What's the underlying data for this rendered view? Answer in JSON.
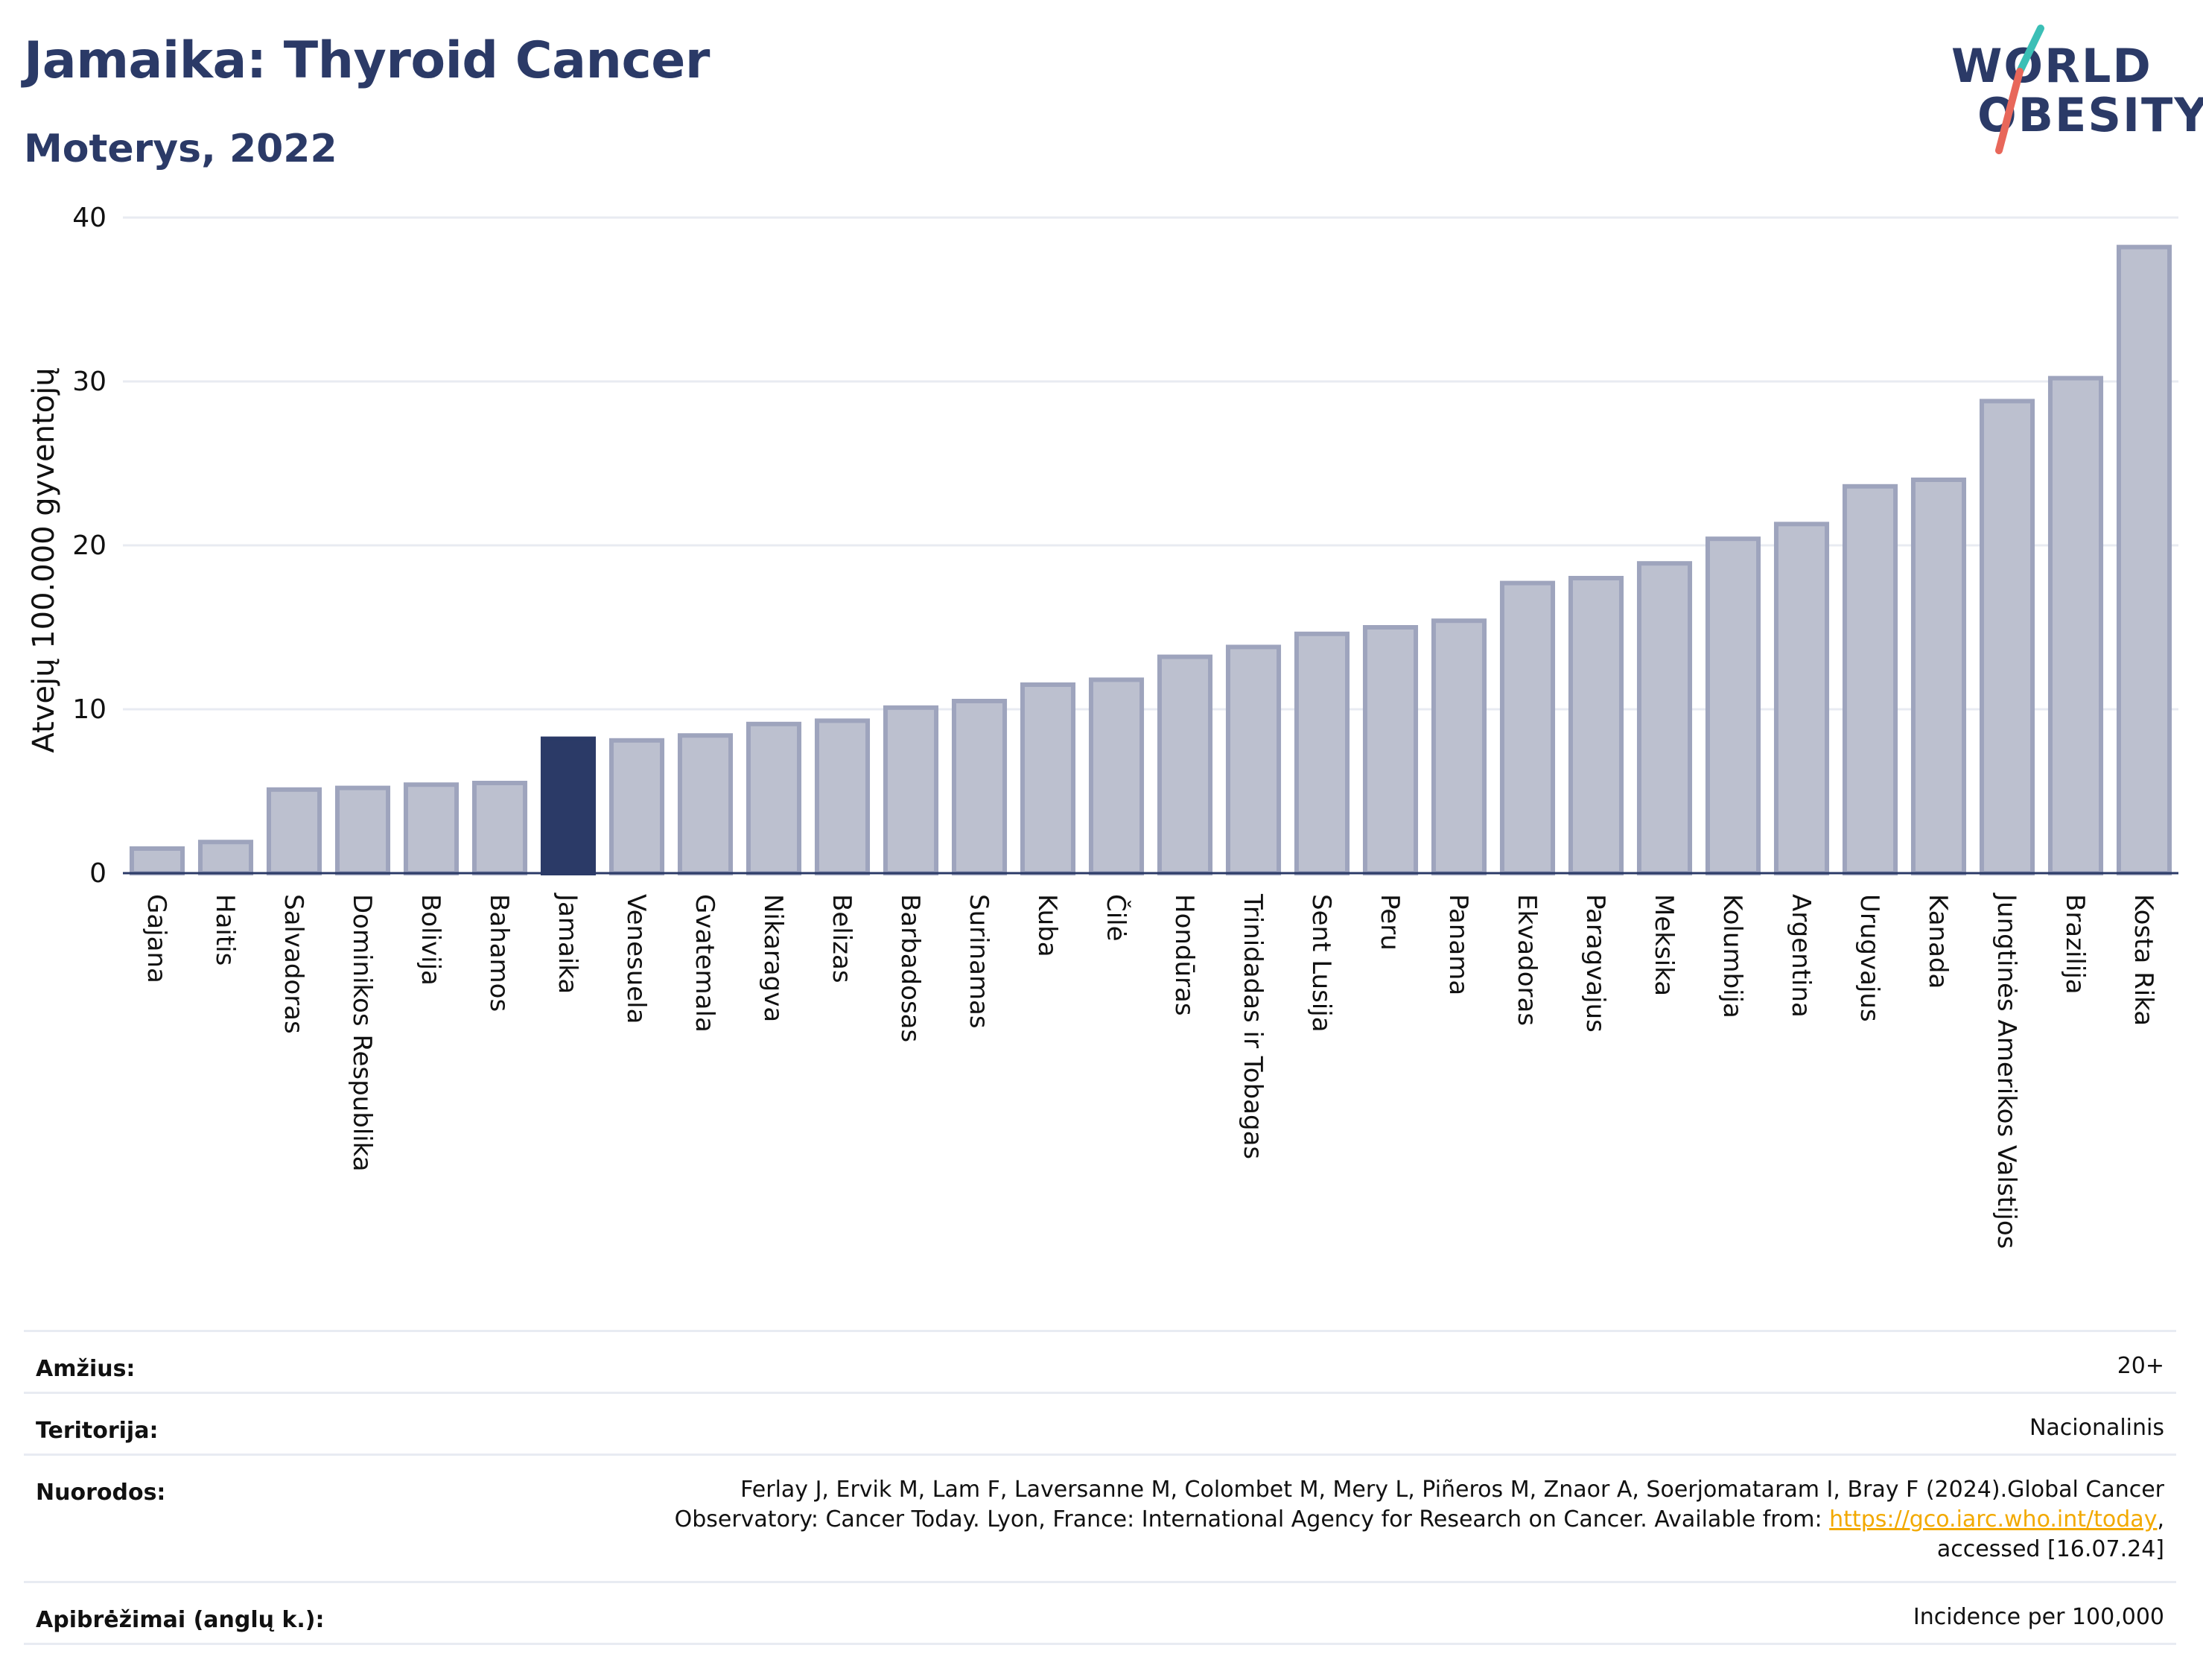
{
  "header": {
    "title": "Jamaika: Thyroid Cancer",
    "subtitle": "Moterys, 2022",
    "logo_line1": "WORLD",
    "logo_line2": "OBESITY"
  },
  "colors": {
    "highlight": "#2b3a67",
    "bar": "#bcc0cf",
    "bar_edge": "#9ea4bd",
    "title": "#2b3a67",
    "logo_teal": "#3bbfb6",
    "logo_red": "#e8675a",
    "link": "#f2a900"
  },
  "chart_data": {
    "type": "bar",
    "ylabel": "Atvejų 100.000 gyventojų",
    "ylim": [
      0,
      40
    ],
    "yticks": [
      0,
      10,
      20,
      30,
      40
    ],
    "grid": true,
    "highlight_category": "Jamaika",
    "categories": [
      "Gajana",
      "Haitis",
      "Salvadoras",
      "Dominikos Respublika",
      "Bolivija",
      "Bahamos",
      "Jamaika",
      "Venesuela",
      "Gvatemala",
      "Nikaragva",
      "Belizas",
      "Barbadosas",
      "Surinamas",
      "Kuba",
      "Čilė",
      "Hondūras",
      "Trinidadas ir Tobagas",
      "Sent Lusija",
      "Peru",
      "Panama",
      "Ekvadoras",
      "Paragvajus",
      "Meksika",
      "Kolumbija",
      "Argentina",
      "Urugvajus",
      "Kanada",
      "Jungtinės Amerikos Valstijos",
      "Brazilija",
      "Kosta Rika"
    ],
    "values": [
      1.5,
      1.9,
      5.1,
      5.2,
      5.4,
      5.5,
      8.2,
      8.1,
      8.4,
      9.1,
      9.3,
      10.1,
      10.5,
      11.5,
      11.8,
      13.2,
      13.8,
      14.6,
      15.0,
      15.4,
      17.7,
      18.0,
      18.9,
      20.4,
      21.3,
      23.6,
      24.0,
      28.8,
      30.2,
      38.2
    ]
  },
  "info": {
    "age_label": "Amžius:",
    "age_value": "20+",
    "territory_label": "Teritorija:",
    "territory_value": "Nacionalinis",
    "refs_label": "Nuorodos:",
    "refs_line1": "Ferlay J, Ervik M, Lam F, Laversanne M, Colombet M, Mery L, Piñeros M, Znaor A, Soerjomataram I, Bray F (2024).Global Cancer",
    "refs_line2_pre": "Observatory: Cancer Today. Lyon, France: International Agency for Research on Cancer. Available from: ",
    "refs_link": "https://gco.iarc.who.int/today",
    "refs_line2_post": ",",
    "refs_line3": "accessed [16.07.24]",
    "defs_label": "Apibrėžimai (anglų k.):",
    "defs_value": "Incidence per 100,000"
  }
}
